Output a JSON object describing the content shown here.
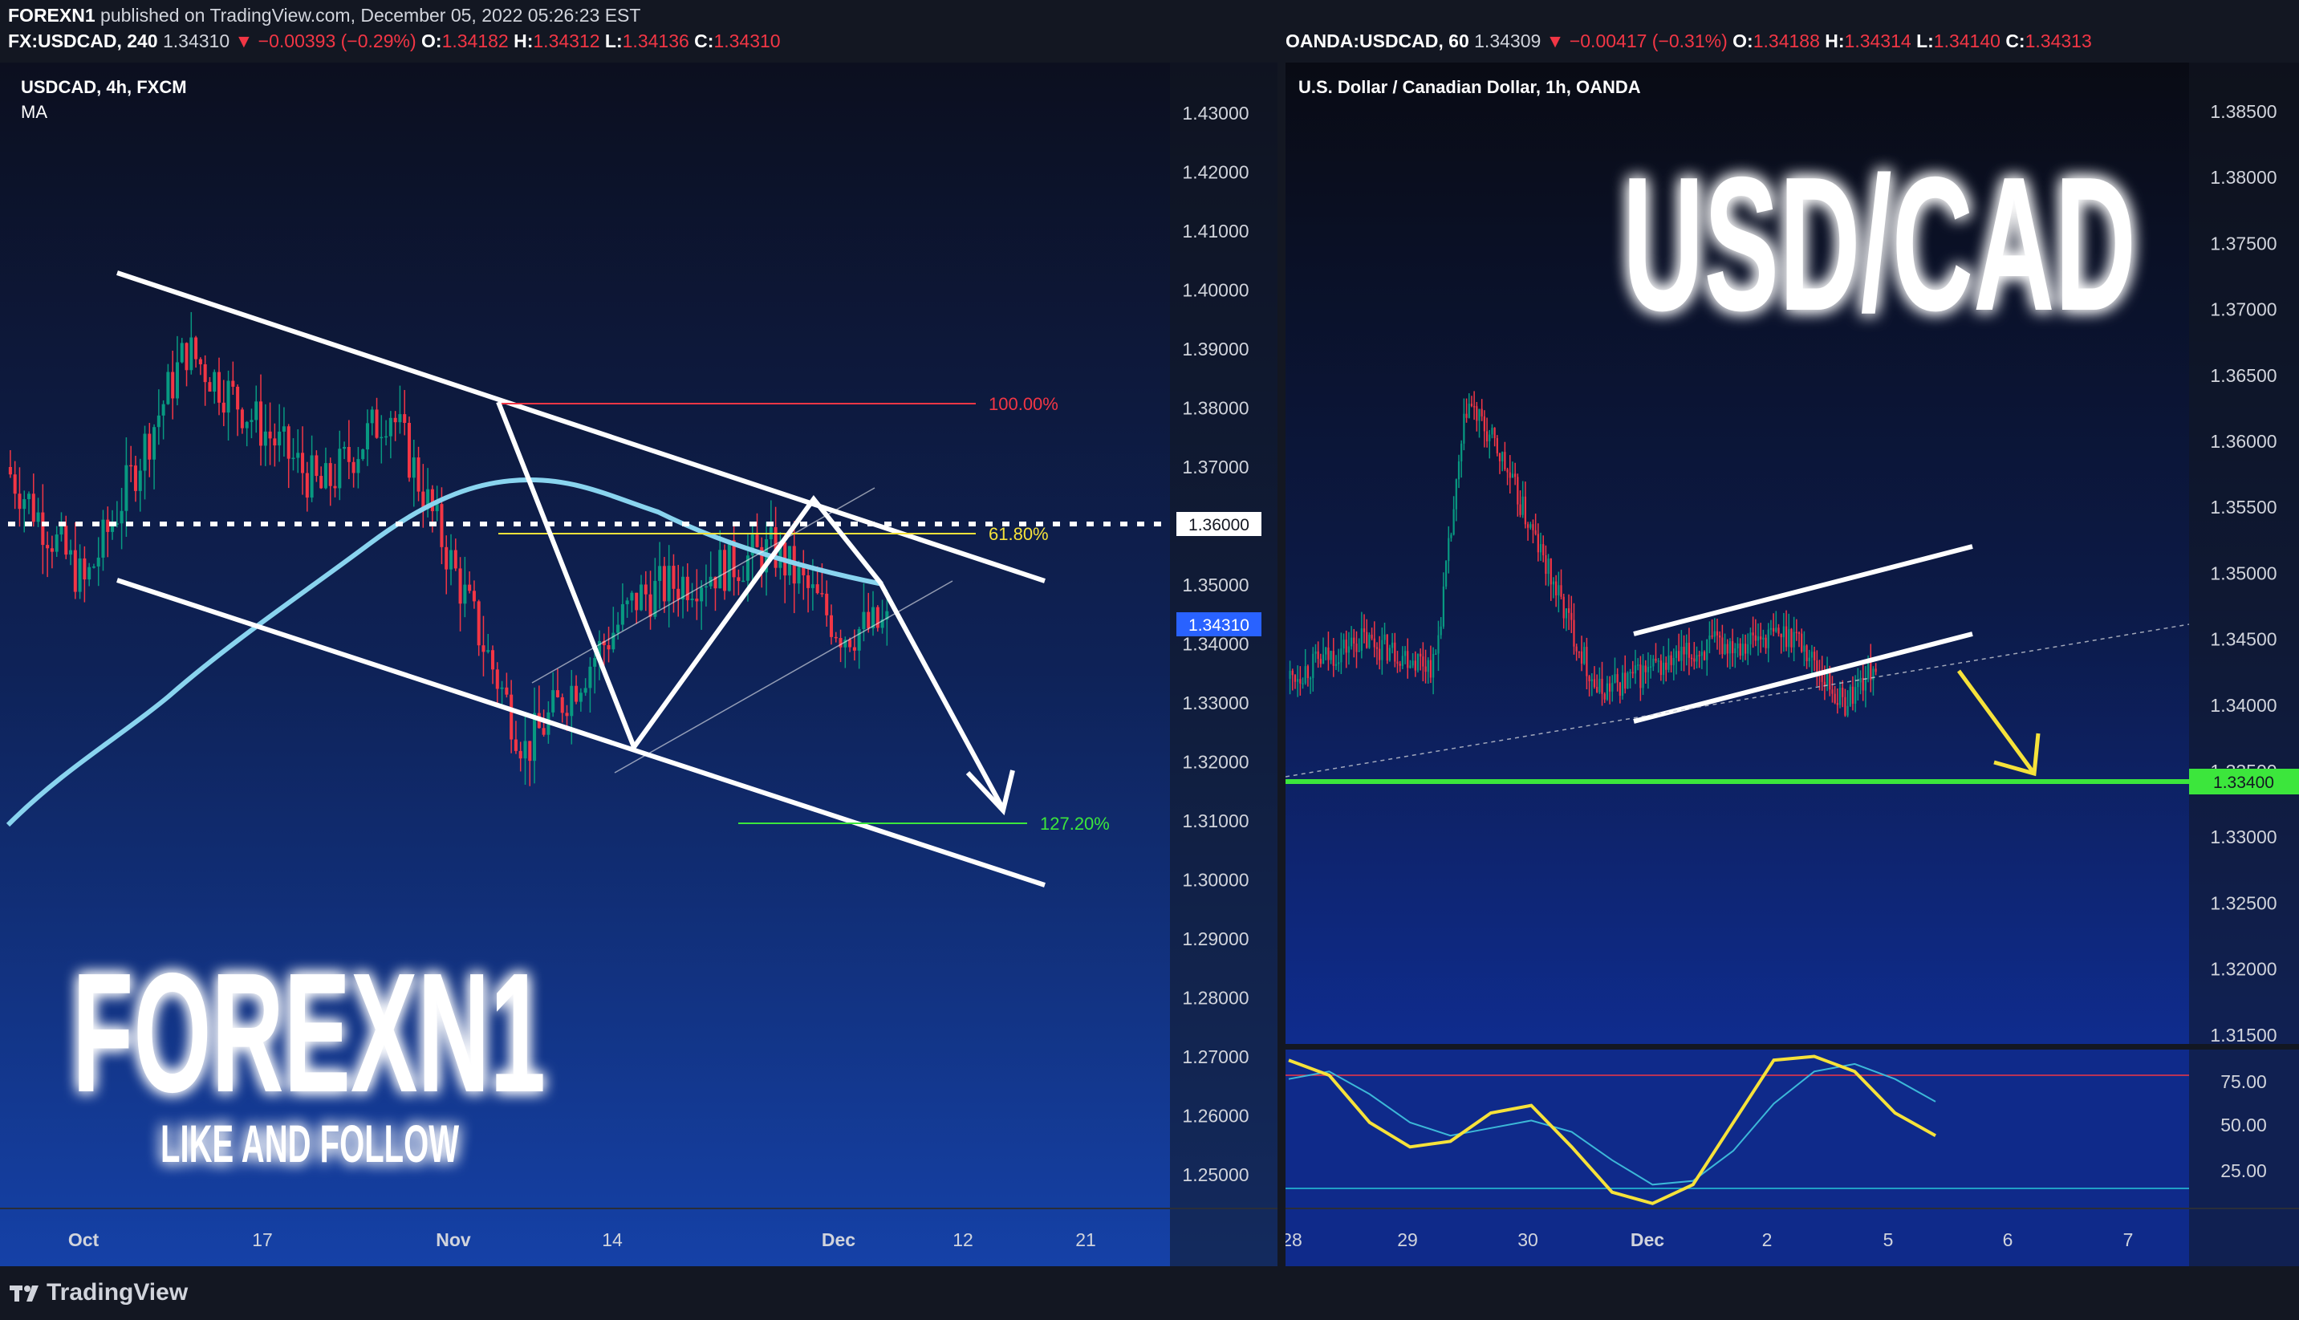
{
  "header": {
    "publisher": "FOREXN1",
    "published_text": "published on TradingView.com, December 05, 2022 05:26:23 EST",
    "left_ohlc": {
      "symbol": "FX:USDCAD, 240",
      "last": "1.34310",
      "change": "▼ −0.00393 (−0.29%)",
      "O": "1.34182",
      "H": "1.34312",
      "L": "1.34136",
      "C": "1.34310"
    },
    "right_ohlc": {
      "symbol": "OANDA:USDCAD, 60",
      "last": "1.34309",
      "change": "▼ −0.00417 (−0.31%)",
      "O": "1.34188",
      "H": "1.34314",
      "L": "1.34140",
      "C": "1.34313"
    }
  },
  "footer": {
    "logo_text": "TradingView"
  },
  "colors": {
    "background": "#131722",
    "bull": "#089981",
    "bear": "#f23645",
    "ma": "#89d4ef",
    "stoch_k": "#f6e23a",
    "stoch_d": "#3cb8d8",
    "support": "#3ce63c",
    "price_label": "#2962ff"
  },
  "chart_data": [
    {
      "type": "candlestick",
      "title": "USDCAD, 4h, FXCM",
      "indicator": "MA",
      "x_ticks": [
        "Oct",
        "17",
        "Nov",
        "14",
        "Dec",
        "12",
        "21"
      ],
      "y_ticks": [
        "1.43000",
        "1.42000",
        "1.41000",
        "1.40000",
        "1.39000",
        "1.38000",
        "1.37000",
        "1.36000",
        "1.35000",
        "1.34000",
        "1.33000",
        "1.32000",
        "1.31000",
        "1.30000",
        "1.29000",
        "1.28000",
        "1.27000",
        "1.26000",
        "1.25000"
      ],
      "ylim": [
        1.2415,
        1.433
      ],
      "last_price": "1.34310",
      "level_label": "1.36000",
      "fibonacci": [
        {
          "label": "100.00%",
          "price": 1.381
        },
        {
          "label": "61.80%",
          "price": 1.3588
        },
        {
          "label": "127.20%",
          "price": 1.3096
        }
      ],
      "watermark": "FOREXN1",
      "tagline": "LIKE AND FOLLOW",
      "swing_path": [
        [
          0.0,
          1.37
        ],
        [
          0.07,
          1.35
        ],
        [
          0.16,
          1.39
        ],
        [
          0.28,
          1.366
        ],
        [
          0.34,
          1.38
        ],
        [
          0.46,
          1.322
        ],
        [
          0.56,
          1.348
        ],
        [
          0.68,
          1.356
        ],
        [
          0.74,
          1.342
        ],
        [
          0.78,
          1.3431
        ]
      ]
    },
    {
      "type": "candlestick",
      "title": "U.S. Dollar / Canadian Dollar, 1h, OANDA",
      "watermark": "USD/CAD",
      "x_ticks": [
        "28",
        "29",
        "30",
        "Dec",
        "2",
        "5",
        "6",
        "7"
      ],
      "y_ticks": [
        "1.38500",
        "1.38000",
        "1.37500",
        "1.37000",
        "1.36500",
        "1.36000",
        "1.35500",
        "1.35000",
        "1.34500",
        "1.34000",
        "1.33500",
        "1.33000",
        "1.32500",
        "1.32000",
        "1.31500"
      ],
      "ylim": [
        1.3135,
        1.388
      ],
      "support_label": "1.33400",
      "swing_path": [
        [
          0.0,
          1.342
        ],
        [
          0.09,
          1.345
        ],
        [
          0.18,
          1.343
        ],
        [
          0.22,
          1.363
        ],
        [
          0.26,
          1.359
        ],
        [
          0.38,
          1.341
        ],
        [
          0.52,
          1.3445
        ],
        [
          0.62,
          1.3455
        ],
        [
          0.68,
          1.34
        ],
        [
          0.72,
          1.3432
        ]
      ],
      "stochastic": {
        "y_ticks": [
          "75.00",
          "50.00",
          "25.00"
        ],
        "overbought": 80,
        "oversold": 20,
        "k": [
          88,
          80,
          55,
          42,
          45,
          60,
          64,
          42,
          18,
          12,
          22,
          55,
          88,
          90,
          82,
          60,
          48
        ],
        "d": [
          78,
          82,
          70,
          55,
          48,
          52,
          56,
          50,
          35,
          22,
          24,
          40,
          65,
          82,
          86,
          78,
          66
        ]
      }
    }
  ]
}
